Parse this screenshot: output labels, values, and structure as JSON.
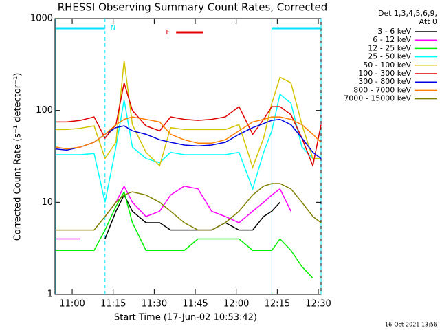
{
  "chart_data": {
    "type": "line",
    "title": "RHESSI Observing Summary Count Rates, Corrected",
    "xlabel": "Start Time (17-Jun-02 10:53:42)",
    "ylabel": "Corrected Count Rate (s⁻¹ detector⁻¹)",
    "footer": "16-Oct-2021 13:56",
    "legend_title": [
      "Det 1,3,4,5,6,9,",
      "Att 0"
    ],
    "legend": "right",
    "yscale": "log",
    "xlim": [
      "10:53:42",
      "12:31:00"
    ],
    "xticks": [
      "11:00",
      "11:15",
      "11:30",
      "11:45",
      "12:00",
      "12:15",
      "12:30"
    ],
    "ylim": [
      1,
      1000
    ],
    "yticks": [
      1,
      10,
      100,
      1000
    ],
    "night": {
      "label": "N",
      "color": "#00e5ff",
      "intervals": [
        [
          "10:54",
          "11:12"
        ],
        [
          "12:13",
          "12:31"
        ]
      ]
    },
    "flare": {
      "label": "F",
      "color": "#e00000",
      "interval": [
        "11:38",
        "11:48"
      ],
      "label_at": "11:35"
    },
    "x": [
      "10:54",
      "10:58",
      "11:03",
      "11:08",
      "11:12",
      "11:16",
      "11:19",
      "11:22",
      "11:27",
      "11:32",
      "11:36",
      "11:41",
      "11:46",
      "11:51",
      "11:56",
      "12:01",
      "12:06",
      "12:10",
      "12:13",
      "12:16",
      "12:20",
      "12:24",
      "12:28",
      "12:31"
    ],
    "series": [
      {
        "name": "3 - 6 keV",
        "color": "#000000",
        "values": [
          null,
          null,
          null,
          null,
          4,
          8,
          12,
          8,
          6,
          6,
          5,
          5,
          5,
          5,
          6,
          5,
          5,
          7,
          8,
          10,
          null,
          null,
          null,
          null
        ]
      },
      {
        "name": "6 - 12 keV",
        "color": "#ff00ff",
        "values": [
          4,
          4,
          4,
          null,
          7,
          10,
          15,
          10,
          7,
          8,
          12,
          15,
          14,
          8,
          7,
          6,
          8,
          10,
          12,
          14,
          8,
          null,
          null,
          null
        ]
      },
      {
        "name": "12 - 25 keV",
        "color": "#00ee00",
        "values": [
          3,
          3,
          3,
          3,
          5,
          9,
          13,
          6,
          3,
          3,
          3,
          3,
          4,
          4,
          4,
          4,
          3,
          3,
          3,
          4,
          3,
          2,
          1.5,
          null
        ]
      },
      {
        "name": "25 - 50 keV",
        "color": "#00ffff",
        "values": [
          33,
          33,
          33,
          34,
          10,
          40,
          130,
          40,
          30,
          27,
          35,
          33,
          33,
          33,
          33,
          35,
          14,
          35,
          60,
          150,
          120,
          40,
          30,
          30
        ]
      },
      {
        "name": "50 - 100 keV",
        "color": "#d4c400",
        "values": [
          62,
          62,
          64,
          68,
          30,
          45,
          350,
          70,
          35,
          25,
          65,
          62,
          62,
          62,
          62,
          70,
          24,
          50,
          120,
          230,
          200,
          70,
          30,
          30
        ]
      },
      {
        "name": "100 - 300 keV",
        "color": "#e00000",
        "values": [
          75,
          75,
          78,
          85,
          50,
          70,
          200,
          100,
          68,
          60,
          85,
          80,
          78,
          80,
          85,
          110,
          55,
          80,
          110,
          110,
          90,
          50,
          25,
          70
        ]
      },
      {
        "name": "300 - 800 keV",
        "color": "#0000e0",
        "values": [
          38,
          37,
          40,
          45,
          55,
          65,
          68,
          60,
          55,
          48,
          45,
          42,
          41,
          42,
          45,
          55,
          65,
          72,
          78,
          80,
          70,
          50,
          35,
          30
        ]
      },
      {
        "name": "800 - 7000 keV",
        "color": "#ff8000",
        "values": [
          40,
          38,
          40,
          45,
          55,
          70,
          80,
          85,
          80,
          75,
          55,
          48,
          44,
          44,
          48,
          60,
          75,
          80,
          85,
          85,
          80,
          70,
          55,
          45
        ]
      },
      {
        "name": "7000 - 15000 keV",
        "color": "#808000",
        "values": [
          5,
          5,
          5,
          5,
          7,
          10,
          12,
          13,
          12,
          10,
          8,
          6,
          5,
          5,
          6,
          8,
          12,
          15,
          16,
          16,
          14,
          10,
          7,
          6
        ]
      }
    ]
  }
}
